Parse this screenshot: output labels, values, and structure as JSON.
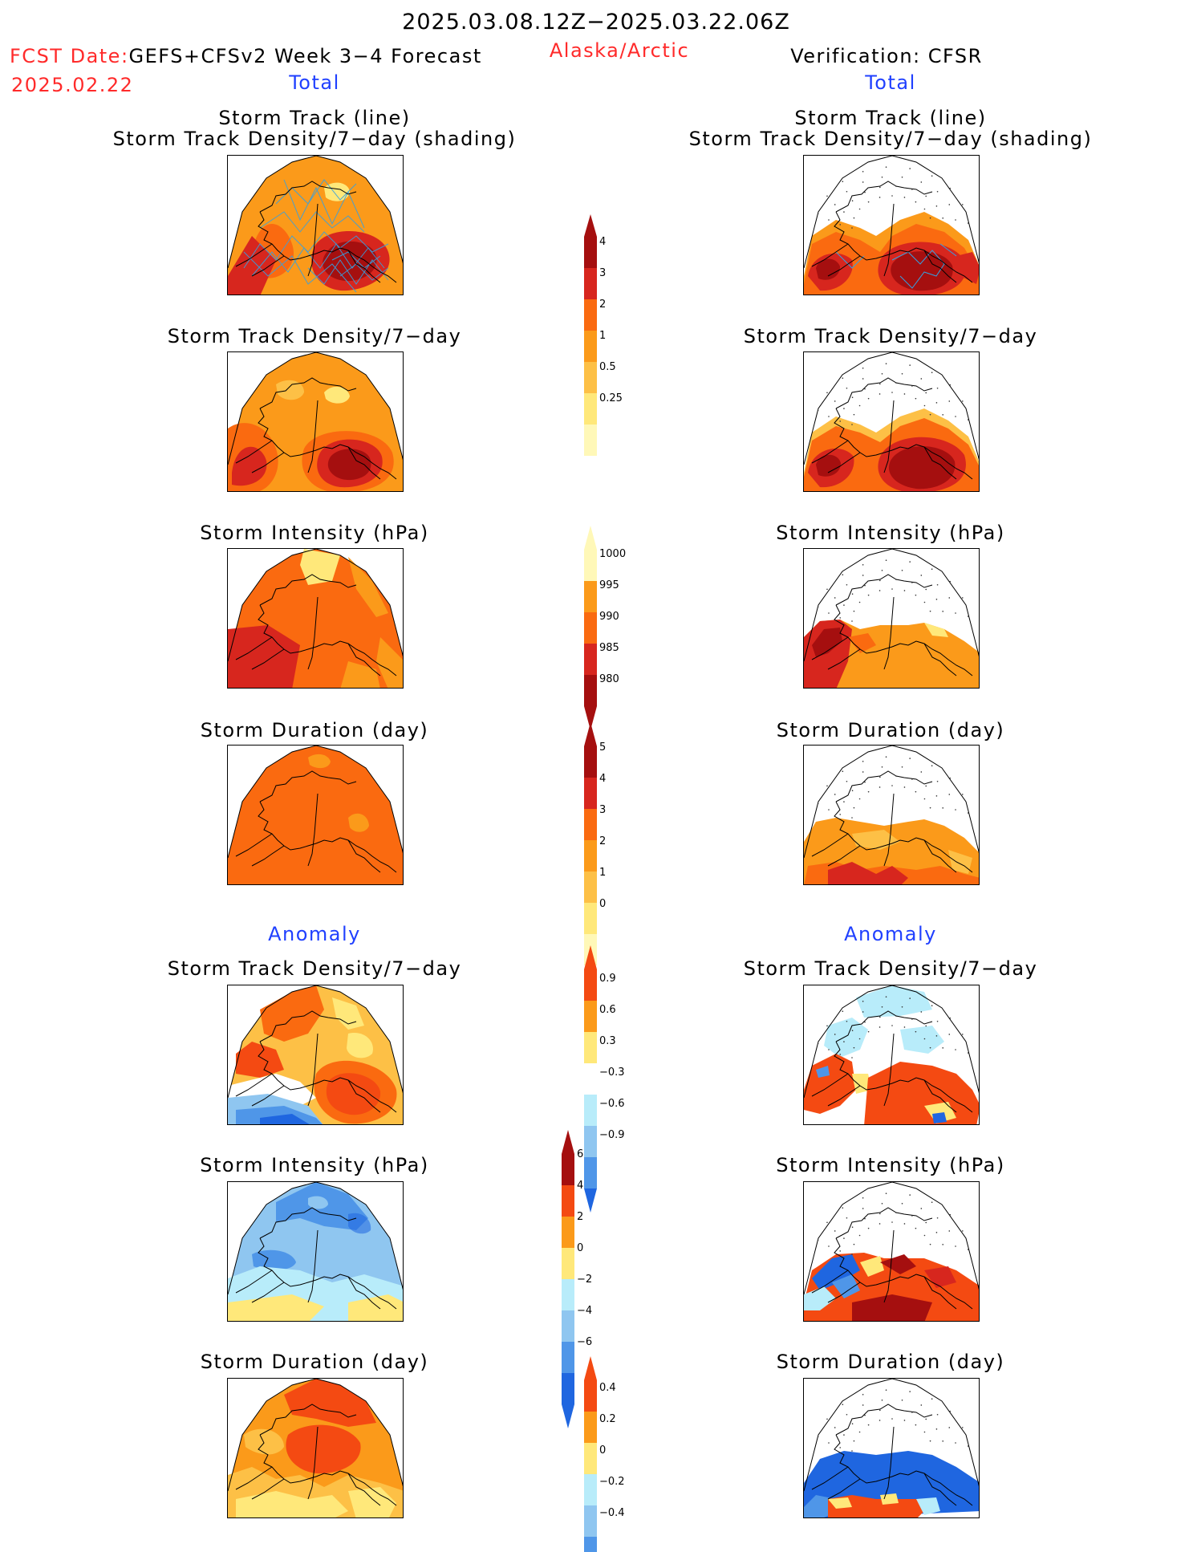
{
  "header": {
    "period": "2025.03.08.12Z−2025.03.22.06Z",
    "fcst_label": "FCST Date:",
    "fcst_model": "GEFS+CFSv2 Week 3−4 Forecast",
    "fcst_date": "2025.02.22",
    "region": "Alaska/Arctic",
    "verification": "Verification: CFSR",
    "total_left": "Total",
    "total_right": "Total",
    "anomaly_left": "Anomaly",
    "anomaly_right": "Anomaly"
  },
  "panel_titles": {
    "track_line": "Storm Track (line)",
    "track_shading": "Storm Track Density/7−day (shading)",
    "density": "Storm Track Density/7−day",
    "intensity": "Storm Intensity (hPa)",
    "duration": "Storm Duration (day)"
  },
  "colorbars": {
    "density_total": [
      "0.25",
      "0.5",
      "1",
      "2",
      "3",
      "4"
    ],
    "intensity_total": [
      "980",
      "985",
      "990",
      "995",
      "1000"
    ],
    "duration_total": [
      "0",
      "1",
      "2",
      "3",
      "4",
      "5"
    ],
    "density_anom": [
      "−0.9",
      "−0.6",
      "−0.3",
      "0.3",
      "0.6",
      "0.9"
    ],
    "intensity_anom": [
      "−6",
      "−4",
      "−2",
      "0",
      "2",
      "4",
      "6"
    ],
    "duration_anom": [
      "−0.4",
      "−0.2",
      "0",
      "0.2",
      "0.4"
    ]
  },
  "colors": {
    "dark_red": "#a50f0f",
    "red": "#d7261e",
    "red_orange": "#f44a12",
    "orange_red": "#fa6a10",
    "orange": "#fb9a1a",
    "light_orange": "#fdc046",
    "yellow": "#ffe87a",
    "pale_yellow": "#fff8b8",
    "pale_blue": "#b8ecfa",
    "light_blue": "#8fc6f0",
    "mid_blue": "#4f96e8",
    "blue": "#1f66e0"
  }
}
